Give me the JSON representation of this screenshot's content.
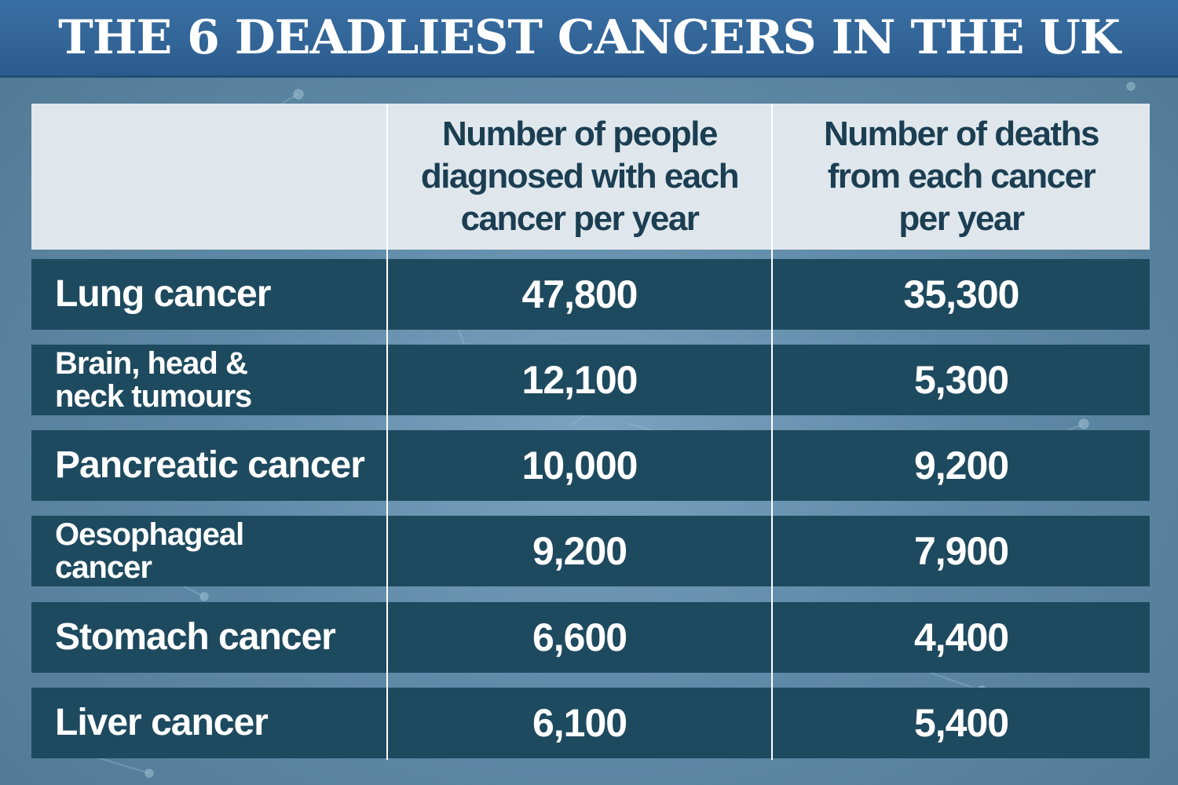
{
  "title": "THE 6 DEADLIEST CANCERS IN THE UK",
  "chart_data": {
    "type": "table",
    "title": "THE 6 DEADLIEST CANCERS IN THE UK",
    "columns": [
      "",
      "Number of people diagnosed with each cancer per year",
      "Number of deaths from each cancer per year"
    ],
    "column_header_lines": [
      [],
      [
        "Number of people",
        "diagnosed with each",
        "cancer per year"
      ],
      [
        "Number of deaths",
        "from each cancer",
        "per year"
      ]
    ],
    "rows": [
      {
        "name": "Lung cancer",
        "name_lines": [
          "Lung cancer"
        ],
        "diagnosed": "47,800",
        "deaths": "35,300"
      },
      {
        "name": "Brain, head & neck tumours",
        "name_lines": [
          "Brain, head &",
          "neck tumours"
        ],
        "diagnosed": "12,100",
        "deaths": "5,300"
      },
      {
        "name": "Pancreatic cancer",
        "name_lines": [
          "Pancreatic cancer"
        ],
        "diagnosed": "10,000",
        "deaths": "9,200"
      },
      {
        "name": "Oesophageal cancer",
        "name_lines": [
          "Oesophageal",
          "cancer"
        ],
        "diagnosed": "9,200",
        "deaths": "7,900"
      },
      {
        "name": "Stomach cancer",
        "name_lines": [
          "Stomach cancer"
        ],
        "diagnosed": "6,600",
        "deaths": "4,400"
      },
      {
        "name": "Liver cancer",
        "name_lines": [
          "Liver cancer"
        ],
        "diagnosed": "6,100",
        "deaths": "5,400"
      }
    ]
  },
  "colors": {
    "title_bar": "#2c5c8e",
    "header_bg": "#dfe7ec",
    "header_text": "#1c3e52",
    "row_bg": "#1e4a5f",
    "row_text": "#ffffff",
    "background": "#5f8aa7"
  }
}
